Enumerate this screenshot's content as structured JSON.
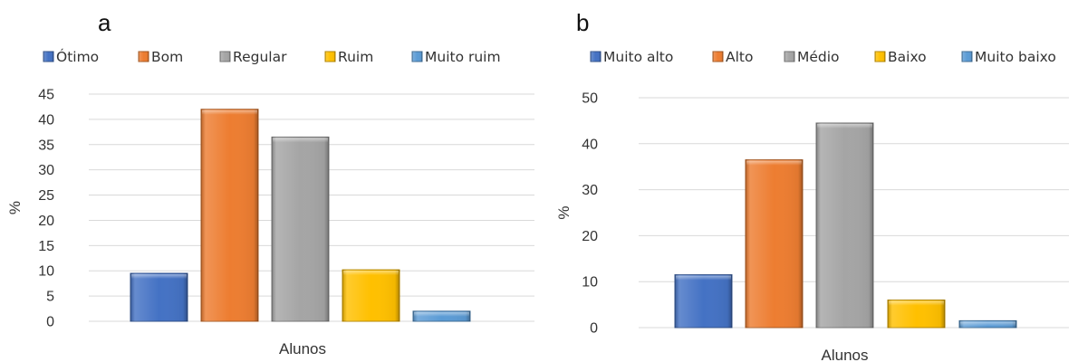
{
  "chart_data": [
    {
      "panel": "a",
      "type": "bar",
      "xlabel": "Alunos",
      "ylabel": "%",
      "ylim": [
        0,
        45
      ],
      "yticks": [
        0,
        5,
        10,
        15,
        20,
        25,
        30,
        35,
        40,
        45
      ],
      "grid": true,
      "legend_position": "top",
      "categories": [
        "Ótimo",
        "Bom",
        "Regular",
        "Ruim",
        "Muito ruim"
      ],
      "values": [
        9.5,
        42,
        36.5,
        10.2,
        2
      ],
      "colors": [
        "#4472C4",
        "#ED7D31",
        "#A5A5A5",
        "#FFC000",
        "#5B9BD5"
      ]
    },
    {
      "panel": "b",
      "type": "bar",
      "xlabel": "Alunos",
      "ylabel": "%",
      "ylim": [
        0,
        50
      ],
      "yticks": [
        0,
        10,
        20,
        30,
        40,
        50
      ],
      "grid": true,
      "legend_position": "top",
      "categories": [
        "Muito alto",
        "Alto",
        "Médio",
        "Baixo",
        "Muito baixo"
      ],
      "values": [
        11.5,
        36.5,
        44.5,
        6,
        1.5
      ],
      "colors": [
        "#4472C4",
        "#ED7D31",
        "#A5A5A5",
        "#FFC000",
        "#5B9BD5"
      ]
    }
  ]
}
